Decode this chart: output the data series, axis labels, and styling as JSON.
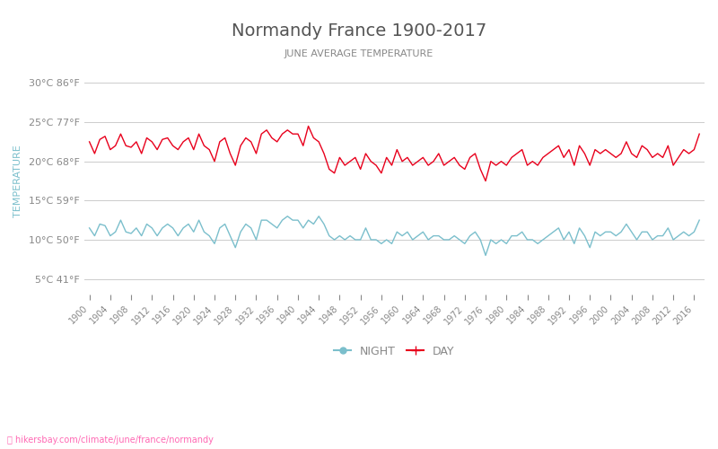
{
  "title": "Normandy France 1900-2017",
  "subtitle": "JUNE AVERAGE TEMPERATURE",
  "ylabel": "TEMPERATURE",
  "watermark": "hikersbay.com/climate/june/france/normandy",
  "years": [
    1900,
    1901,
    1902,
    1903,
    1904,
    1905,
    1906,
    1907,
    1908,
    1909,
    1910,
    1911,
    1912,
    1913,
    1914,
    1915,
    1916,
    1917,
    1918,
    1919,
    1920,
    1921,
    1922,
    1923,
    1924,
    1925,
    1926,
    1927,
    1928,
    1929,
    1930,
    1931,
    1932,
    1933,
    1934,
    1935,
    1936,
    1937,
    1938,
    1939,
    1940,
    1941,
    1942,
    1943,
    1944,
    1945,
    1946,
    1947,
    1948,
    1949,
    1950,
    1951,
    1952,
    1953,
    1954,
    1955,
    1956,
    1957,
    1958,
    1959,
    1960,
    1961,
    1962,
    1963,
    1964,
    1965,
    1966,
    1967,
    1968,
    1969,
    1970,
    1971,
    1972,
    1973,
    1974,
    1975,
    1976,
    1977,
    1978,
    1979,
    1980,
    1981,
    1982,
    1983,
    1984,
    1985,
    1986,
    1987,
    1988,
    1989,
    1990,
    1991,
    1992,
    1993,
    1994,
    1995,
    1996,
    1997,
    1998,
    1999,
    2000,
    2001,
    2002,
    2003,
    2004,
    2005,
    2006,
    2007,
    2008,
    2009,
    2010,
    2011,
    2012,
    2013,
    2014,
    2015,
    2016,
    2017
  ],
  "day_temps": [
    22.5,
    21.0,
    22.8,
    23.2,
    21.5,
    22.0,
    23.5,
    22.0,
    21.8,
    22.5,
    21.0,
    23.0,
    22.5,
    21.5,
    22.8,
    23.0,
    22.0,
    21.5,
    22.5,
    23.0,
    21.5,
    23.5,
    22.0,
    21.5,
    20.0,
    22.5,
    23.0,
    21.0,
    19.5,
    22.0,
    23.0,
    22.5,
    21.0,
    23.5,
    24.0,
    23.0,
    22.5,
    23.5,
    24.0,
    23.5,
    23.5,
    22.0,
    24.5,
    23.0,
    22.5,
    21.0,
    19.0,
    18.5,
    20.5,
    19.5,
    20.0,
    20.5,
    19.0,
    21.0,
    20.0,
    19.5,
    18.5,
    20.5,
    19.5,
    21.5,
    20.0,
    20.5,
    19.5,
    20.0,
    20.5,
    19.5,
    20.0,
    21.0,
    19.5,
    20.0,
    20.5,
    19.5,
    19.0,
    20.5,
    21.0,
    19.0,
    17.5,
    20.0,
    19.5,
    20.0,
    19.5,
    20.5,
    21.0,
    21.5,
    19.5,
    20.0,
    19.5,
    20.5,
    21.0,
    21.5,
    22.0,
    20.5,
    21.5,
    19.5,
    22.0,
    21.0,
    19.5,
    21.5,
    21.0,
    21.5,
    21.0,
    20.5,
    21.0,
    22.5,
    21.0,
    20.5,
    22.0,
    21.5,
    20.5,
    21.0,
    20.5,
    22.0,
    19.5,
    20.5,
    21.5,
    21.0,
    21.5,
    23.5
  ],
  "night_temps": [
    11.5,
    10.5,
    12.0,
    11.8,
    10.5,
    11.0,
    12.5,
    11.0,
    10.8,
    11.5,
    10.5,
    12.0,
    11.5,
    10.5,
    11.5,
    12.0,
    11.5,
    10.5,
    11.5,
    12.0,
    11.0,
    12.5,
    11.0,
    10.5,
    9.5,
    11.5,
    12.0,
    10.5,
    9.0,
    11.0,
    12.0,
    11.5,
    10.0,
    12.5,
    12.5,
    12.0,
    11.5,
    12.5,
    13.0,
    12.5,
    12.5,
    11.5,
    12.5,
    12.0,
    13.0,
    12.0,
    10.5,
    10.0,
    10.5,
    10.0,
    10.5,
    10.0,
    10.0,
    11.5,
    10.0,
    10.0,
    9.5,
    10.0,
    9.5,
    11.0,
    10.5,
    11.0,
    10.0,
    10.5,
    11.0,
    10.0,
    10.5,
    10.5,
    10.0,
    10.0,
    10.5,
    10.0,
    9.5,
    10.5,
    11.0,
    10.0,
    8.0,
    10.0,
    9.5,
    10.0,
    9.5,
    10.5,
    10.5,
    11.0,
    10.0,
    10.0,
    9.5,
    10.0,
    10.5,
    11.0,
    11.5,
    10.0,
    11.0,
    9.5,
    11.5,
    10.5,
    9.0,
    11.0,
    10.5,
    11.0,
    11.0,
    10.5,
    11.0,
    12.0,
    11.0,
    10.0,
    11.0,
    11.0,
    10.0,
    10.5,
    10.5,
    11.5,
    10.0,
    10.5,
    11.0,
    10.5,
    11.0,
    12.5
  ],
  "yticks_c": [
    5,
    10,
    15,
    20,
    25,
    30
  ],
  "yticks_f": [
    41,
    50,
    59,
    68,
    77,
    86
  ],
  "ylim": [
    3,
    32
  ],
  "day_color": "#e8001c",
  "night_color": "#7bbfcc",
  "grid_color": "#cccccc",
  "title_color": "#555555",
  "subtitle_color": "#888888",
  "ylabel_color": "#7bbfcc",
  "tick_color": "#888888",
  "watermark_color": "#ff69b4",
  "bg_color": "#ffffff",
  "legend_day_color": "#e8001c",
  "legend_night_color": "#7bbfcc"
}
